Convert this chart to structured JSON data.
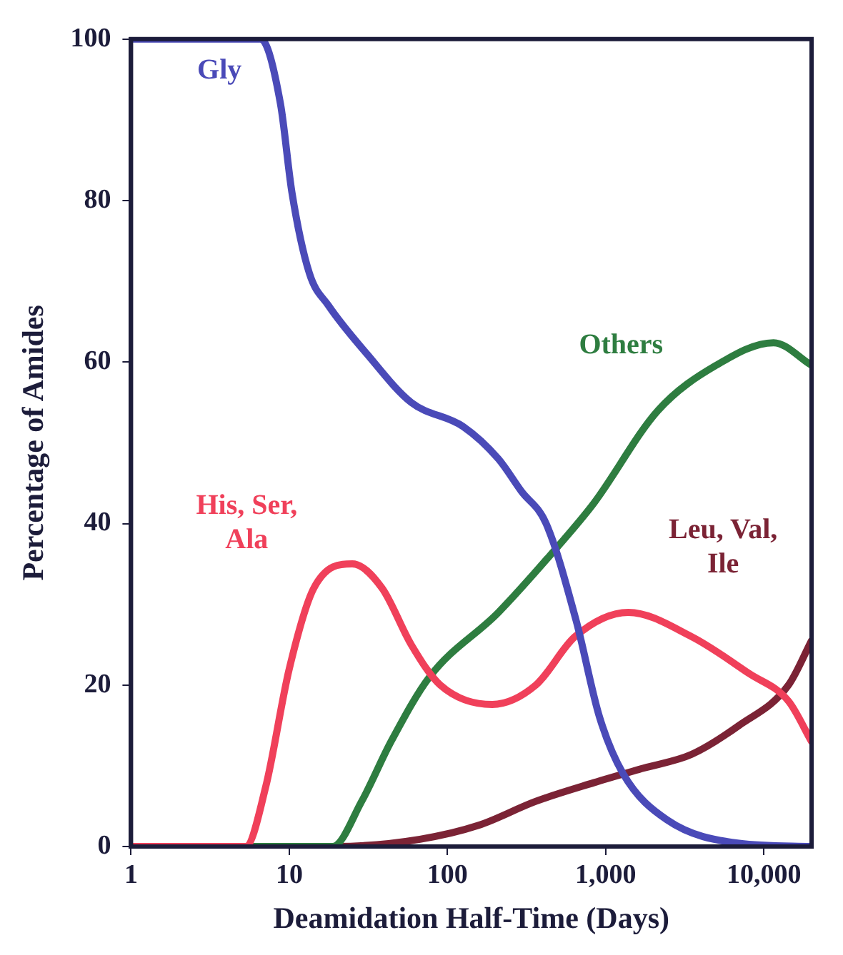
{
  "chart_data": {
    "type": "line",
    "xlabel": "Deamidation Half-Time (Days)",
    "ylabel": "Percentage of Amides",
    "log": "x",
    "grid": false,
    "marker": "none",
    "xlim": [
      1,
      20000
    ],
    "ylim": [
      0,
      100
    ],
    "xticks": [
      1,
      10,
      100,
      {
        "value": 1000,
        "label": "1,000"
      },
      {
        "value": 10000,
        "label": "10,000"
      }
    ],
    "yticks": [
      0,
      20,
      40,
      60,
      80,
      100
    ],
    "series": [
      {
        "name": "Gly",
        "color": "#4a4ab8",
        "x": [
          1,
          6.6,
          8.8,
          10.4,
          13.4,
          17.7,
          31,
          59,
          126,
          210,
          293,
          420,
          650,
          915,
          1290,
          2440,
          6960,
          20000
        ],
        "values": [
          100,
          100,
          92,
          81,
          71,
          67,
          61,
          55,
          52,
          48,
          44,
          40,
          28,
          16,
          9,
          3.3,
          0.4,
          0
        ]
      },
      {
        "name": "His, Ser, Ala",
        "color": "#f0405a",
        "x": [
          1,
          5.3,
          7.1,
          10,
          14.3,
          25,
          38.6,
          59,
          90,
          192,
          362,
          640,
          1390,
          3480,
          8100,
          14300,
          20000
        ],
        "values": [
          0,
          0,
          7.4,
          22,
          32,
          35,
          32,
          25,
          20,
          17.6,
          20,
          26,
          29,
          26,
          21.4,
          18,
          13
        ]
      },
      {
        "name": "Others",
        "color": "#2e7d40",
        "x": [
          1,
          18.8,
          28.7,
          44,
          77,
          210,
          490,
          840,
          2140,
          4990,
          11500,
          20000
        ],
        "values": [
          0,
          0,
          5.6,
          13,
          21,
          29,
          37,
          42.5,
          54,
          59.6,
          62.4,
          59.6
        ]
      },
      {
        "name": "Leu, Val, Ile",
        "color": "#7b2335",
        "x": [
          1,
          20,
          67,
          156,
          362,
          840,
          1730,
          3480,
          6960,
          14300,
          20000
        ],
        "values": [
          0,
          0,
          0.9,
          2.6,
          5.6,
          7.9,
          9.7,
          11.4,
          15,
          20,
          25.5
        ]
      }
    ]
  }
}
